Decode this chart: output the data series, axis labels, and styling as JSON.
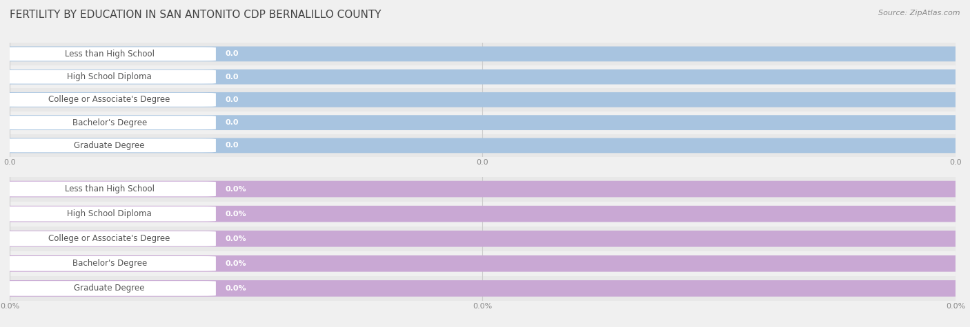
{
  "title": "FERTILITY BY EDUCATION IN SAN ANTONITO CDP BERNALILLO COUNTY",
  "source": "Source: ZipAtlas.com",
  "categories": [
    "Less than High School",
    "High School Diploma",
    "College or Associate's Degree",
    "Bachelor's Degree",
    "Graduate Degree"
  ],
  "values_top": [
    0.0,
    0.0,
    0.0,
    0.0,
    0.0
  ],
  "values_bottom": [
    0.0,
    0.0,
    0.0,
    0.0,
    0.0
  ],
  "bar_color_top": "#a8c4e0",
  "bar_color_bottom": "#c9a8d4",
  "background_color": "#f0f0f0",
  "row_bg_alt": "#e8e8e8",
  "title_fontsize": 11,
  "label_fontsize": 8.5,
  "value_fontsize": 8,
  "axis_fontsize": 8,
  "xtick_labels_top": [
    "0.0",
    "0.0",
    "0.0"
  ],
  "xtick_labels_bottom": [
    "0.0%",
    "0.0%",
    "0.0%"
  ]
}
